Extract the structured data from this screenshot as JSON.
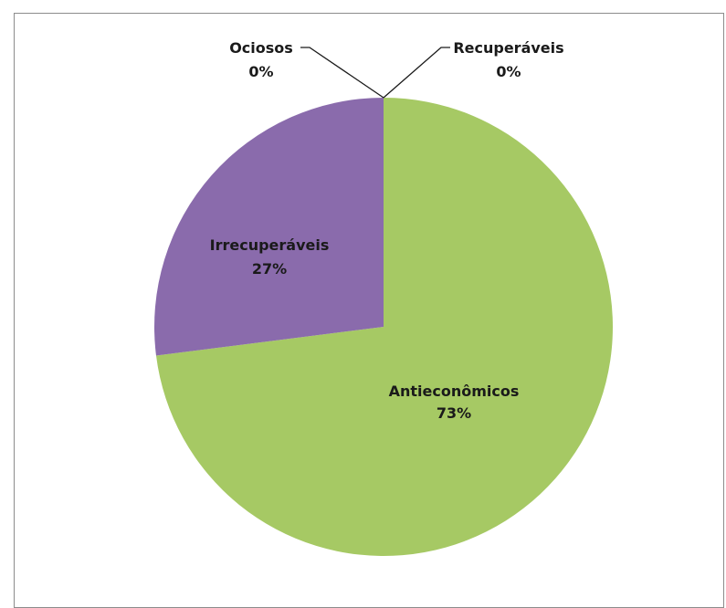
{
  "chart_data": {
    "type": "pie",
    "title": "",
    "slices": [
      {
        "name": "Antieconômicos",
        "percent_label": "73%",
        "value": 73,
        "color": "#a6c964"
      },
      {
        "name": "Irrecuperáveis",
        "percent_label": "27%",
        "value": 27,
        "color": "#8a6bac"
      },
      {
        "name": "Ociosos",
        "percent_label": "0%",
        "value": 0,
        "color": "#4f81bd"
      },
      {
        "name": "Recuperáveis",
        "percent_label": "0%",
        "value": 0,
        "color": "#c0504d"
      }
    ],
    "legend": "none",
    "start": "top, clockwise"
  }
}
